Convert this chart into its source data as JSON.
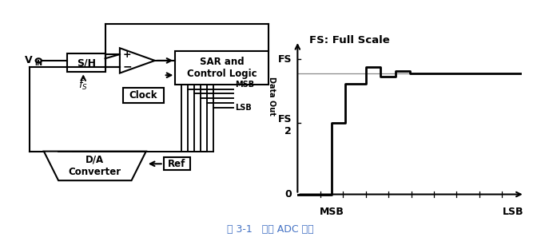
{
  "title_text": "图 3-1   经典 ADC 结构",
  "title_color": "#4472C4",
  "bg_color": "#ffffff",
  "chart_title": "FS: Full Scale",
  "sh_label": "S/H",
  "clock_label": "Clock",
  "sar_label": "SAR and\nControl Logic",
  "da_label": "D/A\nConverter",
  "ref_label": "Ref",
  "msb_bus": "MSB",
  "lsb_bus": "LSB",
  "data_out_label": "Data Out"
}
